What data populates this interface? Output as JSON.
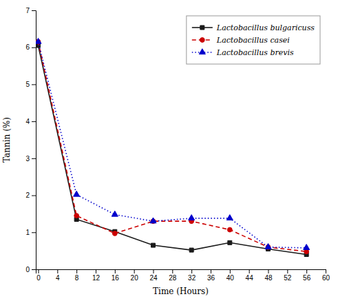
{
  "chart_data": {
    "type": "line",
    "xlabel": "Time (Hours)",
    "ylabel": "Tannin (%)",
    "x": [
      0,
      8,
      16,
      24,
      32,
      40,
      48,
      56
    ],
    "series": [
      {
        "name": "Lactobacillus bulgaricuss",
        "color": "#1a1a1a",
        "marker": "square",
        "line_style": "solid",
        "values": [
          6.05,
          1.35,
          1.02,
          0.65,
          0.52,
          0.72,
          0.55,
          0.4
        ]
      },
      {
        "name": "Lactobacillus casei",
        "color": "#cc0000",
        "marker": "circle",
        "line_style": "dashed",
        "values": [
          6.15,
          1.45,
          0.97,
          1.3,
          1.3,
          1.07,
          0.6,
          0.48
        ]
      },
      {
        "name": "Lactobacillus brevis",
        "color": "#0000cc",
        "marker": "triangle",
        "line_style": "dotted",
        "values": [
          6.15,
          2.02,
          1.48,
          1.3,
          1.38,
          1.38,
          0.6,
          0.58
        ]
      }
    ],
    "xlim": [
      -0.5,
      60
    ],
    "ylim": [
      0,
      7
    ],
    "xticks": [
      0,
      4,
      8,
      12,
      16,
      20,
      24,
      28,
      32,
      36,
      40,
      44,
      48,
      52,
      56,
      60
    ],
    "yticks": [
      0,
      1,
      2,
      3,
      4,
      5,
      6,
      7
    ],
    "legend": "upper right",
    "grid": false
  }
}
